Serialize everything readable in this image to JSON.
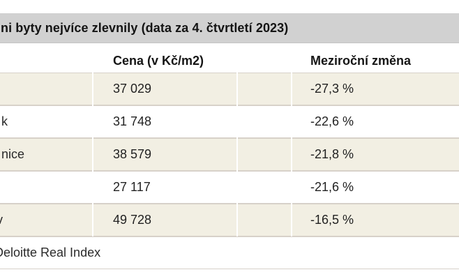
{
  "title_bar": {
    "text": "ni byty nejvíce zlevnily (data za 4. čtvrtletí 2023)"
  },
  "table": {
    "columns": [
      {
        "label": ""
      },
      {
        "label": "Cena (v Kč/m2)"
      },
      {
        "label": ""
      },
      {
        "label": "Meziroční změna"
      }
    ],
    "rows": [
      {
        "city_fragment": "",
        "price": "37 029",
        "change": "-27,3 %"
      },
      {
        "city_fragment": "k",
        "price": "31 748",
        "change": "-22,6 %"
      },
      {
        "city_fragment": "nice",
        "price": "38 579",
        "change": "-21,8 %"
      },
      {
        "city_fragment": "",
        "price": "27 117",
        "change": "-21,6 %"
      },
      {
        "city_fragment": "v",
        "price": "49 728",
        "change": "-16,5 %"
      }
    ],
    "footer": "Deloitte Real Index"
  },
  "colors": {
    "title_bar_bg": "#d1d1d1",
    "row_odd_bg": "#f2efe3",
    "row_even_bg": "#ffffff",
    "row_border": "#d7d1c9",
    "text": "#222222"
  },
  "chart_data": {
    "type": "table",
    "title": "ni byty nejvíce zlevnily (data za 4. čtvrtletí 2023)",
    "columns": [
      "",
      "Cena (v Kč/m2)",
      "Meziroční změna"
    ],
    "rows": [
      [
        "",
        "37 029",
        "-27,3 %"
      ],
      [
        "k",
        "31 748",
        "-22,6 %"
      ],
      [
        "nice",
        "38 579",
        "-21,8 %"
      ],
      [
        "",
        "27 117",
        "-21,6 %"
      ],
      [
        "v",
        "49 728",
        "-16,5 %"
      ]
    ],
    "values": [
      {
        "price_czk_m2": 37029,
        "yoy_change_pct": -27.3
      },
      {
        "price_czk_m2": 31748,
        "yoy_change_pct": -22.6
      },
      {
        "price_czk_m2": 38579,
        "yoy_change_pct": -21.8
      },
      {
        "price_czk_m2": 27117,
        "yoy_change_pct": -21.6
      },
      {
        "price_czk_m2": 49728,
        "yoy_change_pct": -16.5
      }
    ],
    "source_note": "Deloitte Real Index"
  }
}
